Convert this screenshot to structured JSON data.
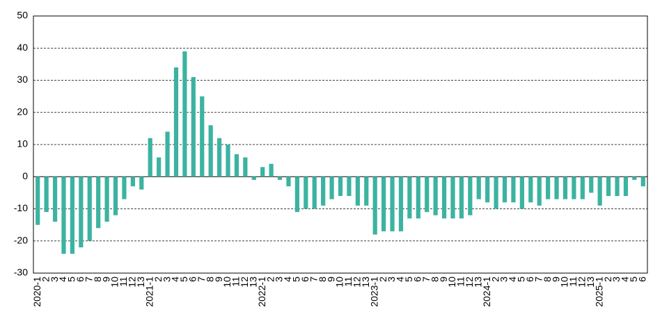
{
  "chart_data": {
    "type": "bar",
    "categories": [
      "2020-1",
      "2",
      "3",
      "4",
      "5",
      "6",
      "7",
      "8",
      "9",
      "10",
      "11",
      "12",
      "13",
      "2021-1",
      "2",
      "3",
      "4",
      "5",
      "6",
      "7",
      "8",
      "9",
      "10",
      "11",
      "12",
      "13",
      "2022-1",
      "2",
      "3",
      "4",
      "5",
      "6",
      "7",
      "8",
      "9",
      "10",
      "11",
      "12",
      "13",
      "2023-1",
      "2",
      "3",
      "4",
      "5",
      "6",
      "7",
      "8",
      "9",
      "10",
      "11",
      "12",
      "13",
      "2024-1",
      "2",
      "3",
      "4",
      "5",
      "6",
      "7",
      "8",
      "9",
      "10",
      "11",
      "12",
      "13",
      "2025-1",
      "2",
      "3",
      "4",
      "5",
      "6"
    ],
    "values": [
      -15,
      -11,
      -14,
      -24,
      -24,
      -22,
      -20,
      -16,
      -14,
      -12,
      -7,
      -3,
      -4,
      12,
      6,
      14,
      34,
      39,
      31,
      25,
      16,
      12,
      10,
      7,
      6,
      -1,
      3,
      4,
      -1,
      -3,
      -11,
      -10,
      -10,
      -9,
      -7,
      -6,
      -6,
      -9,
      -9,
      -18,
      -17,
      -17,
      -17,
      -13,
      -13,
      -11,
      -12,
      -13,
      -13,
      -13,
      -12,
      -7,
      -8,
      -10,
      -8,
      -8,
      -10,
      -8,
      -9,
      -7,
      -7,
      -7,
      -7,
      -7,
      -5,
      -9,
      -6,
      -6,
      -6,
      -1,
      -3
    ],
    "color": "#3cb3a1",
    "ylim": [
      -30,
      50
    ],
    "yticks": [
      -30,
      -20,
      -10,
      0,
      10,
      20,
      30,
      40,
      50
    ],
    "grid": true
  }
}
